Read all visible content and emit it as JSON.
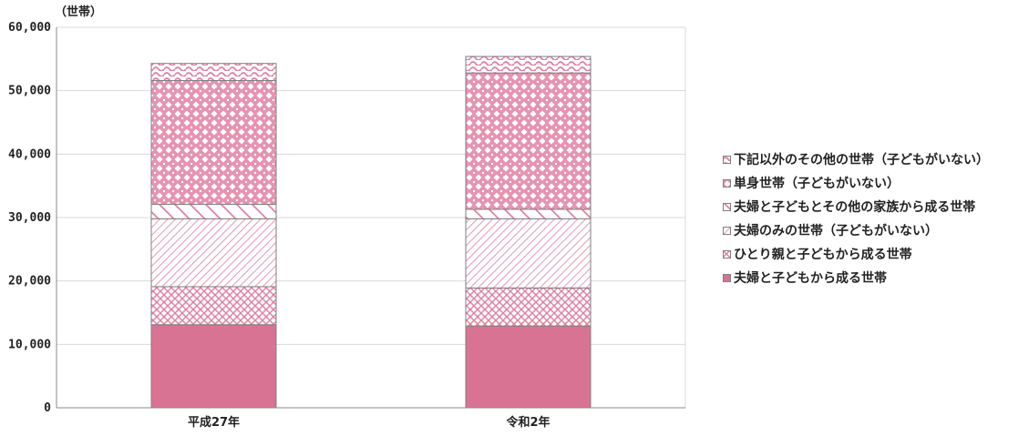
{
  "chart_data": {
    "type": "bar",
    "stacked": true,
    "unit_label": "（世帯）",
    "categories": [
      "平成27年",
      "令和2年"
    ],
    "ylim": [
      0,
      60000
    ],
    "yticks": [
      0,
      10000,
      20000,
      30000,
      40000,
      50000,
      60000
    ],
    "ytick_labels": [
      "0",
      "10,000",
      "20,000",
      "30,000",
      "40,000",
      "50,000",
      "60,000"
    ],
    "grid": true,
    "legend_position": "right",
    "series": [
      {
        "name": "夫婦と子どもから成る世帯",
        "values": [
          13100,
          12900
        ],
        "color": "#d97393",
        "pattern": "solid"
      },
      {
        "name": "ひとり親と子どもから成る世帯",
        "values": [
          6000,
          6000
        ],
        "color": "#e07fa0",
        "pattern": "cross"
      },
      {
        "name": "夫婦のみの世帯（子どもがいない）",
        "values": [
          10700,
          10900
        ],
        "color": "#e07fa0",
        "pattern": "diag"
      },
      {
        "name": "夫婦と子どもとその他の家族から成る世帯",
        "values": [
          2300,
          1500
        ],
        "color": "#e07fa0",
        "pattern": "wide-diag"
      },
      {
        "name": "単身世帯（子どもがいない）",
        "values": [
          19500,
          21500
        ],
        "color": "#e07fa0",
        "pattern": "dots"
      },
      {
        "name": "下記以外のその他の世帯（子どもがいない）",
        "values": [
          2700,
          2600
        ],
        "color": "#e07fa0",
        "pattern": "wave"
      }
    ]
  }
}
